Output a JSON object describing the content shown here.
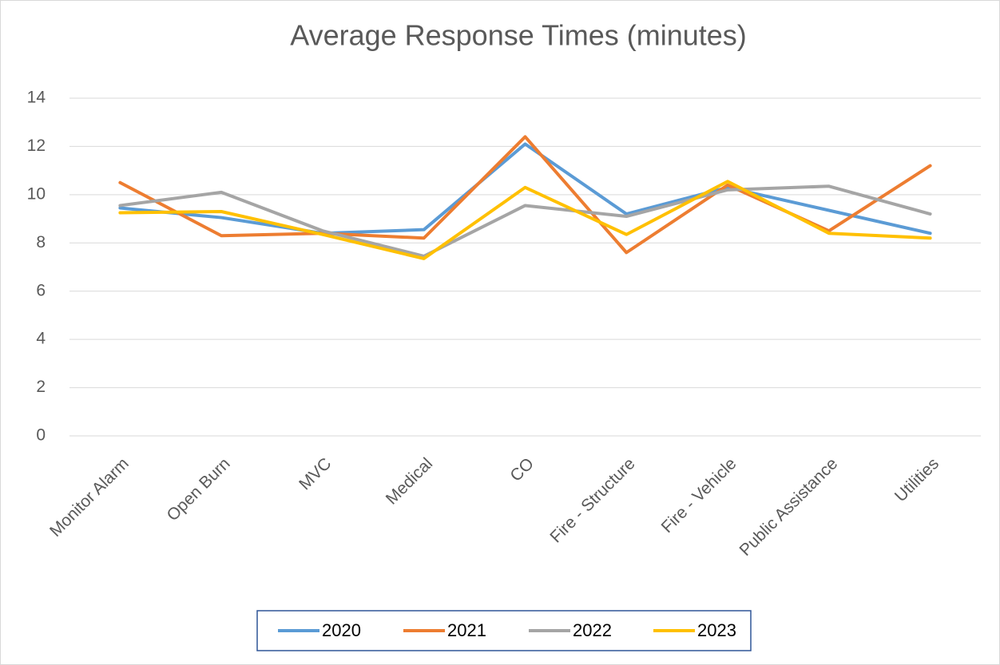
{
  "chart_data": {
    "type": "line",
    "title": "Average Response Times (minutes)",
    "categories": [
      "Monitor Alarm",
      "Open Burn",
      "MVC",
      "Medical",
      "CO",
      "Fire - Structure",
      "Fire - Vehicle",
      "Public Assistance",
      "Utilities"
    ],
    "series": [
      {
        "name": "2020",
        "color": "#5b9bd5",
        "values": [
          9.45,
          9.05,
          8.4,
          8.55,
          12.1,
          9.2,
          10.3,
          9.35,
          8.4
        ]
      },
      {
        "name": "2021",
        "color": "#ed7d31",
        "values": [
          10.5,
          8.3,
          8.4,
          8.2,
          12.4,
          7.6,
          10.4,
          8.5,
          11.2
        ]
      },
      {
        "name": "2022",
        "color": "#a5a5a5",
        "values": [
          9.55,
          10.1,
          8.5,
          7.45,
          9.55,
          9.1,
          10.2,
          10.35,
          9.2
        ]
      },
      {
        "name": "2023",
        "color": "#ffc000",
        "values": [
          9.25,
          9.3,
          8.35,
          7.35,
          10.3,
          8.35,
          10.55,
          8.4,
          8.2
        ]
      }
    ],
    "ylim": [
      0,
      14
    ],
    "yticks": [
      0,
      2,
      4,
      6,
      8,
      10,
      12,
      14
    ],
    "grid": true,
    "legend": "bottom"
  }
}
